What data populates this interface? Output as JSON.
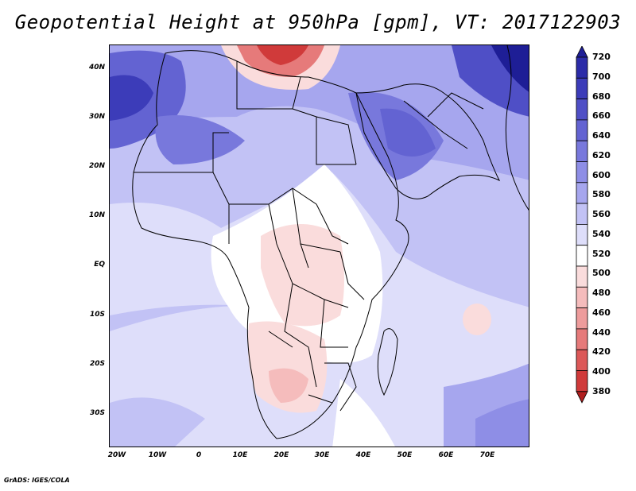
{
  "title": "Geopotential Height at 950hPa [gpm], VT: 2017122903",
  "credit": "GrADS: IGES/COLA",
  "map": {
    "lat_labels": [
      "40N",
      "30N",
      "20N",
      "10N",
      "EQ",
      "10S",
      "20S",
      "30S"
    ],
    "lon_labels": [
      "20W",
      "10W",
      "0",
      "10E",
      "20E",
      "30E",
      "40E",
      "50E",
      "60E",
      "70E"
    ],
    "lat_range": [
      -37,
      45
    ],
    "lon_range": [
      -22,
      80
    ]
  },
  "colorbar": {
    "labels": [
      "720",
      "700",
      "680",
      "660",
      "640",
      "620",
      "600",
      "580",
      "560",
      "540",
      "520",
      "500",
      "480",
      "460",
      "440",
      "420",
      "400",
      "380"
    ],
    "colors": [
      "#1e1e96",
      "#2b2ba8",
      "#3c3cb9",
      "#4f4fc6",
      "#6363d2",
      "#7878dc",
      "#8e8ee6",
      "#a6a6ee",
      "#c2c2f5",
      "#dedefa",
      "#ffffff",
      "#fadcdc",
      "#f5bcbc",
      "#ee9c9c",
      "#e67a7a",
      "#dc5858",
      "#d03a3a",
      "#b01e1e"
    ]
  }
}
